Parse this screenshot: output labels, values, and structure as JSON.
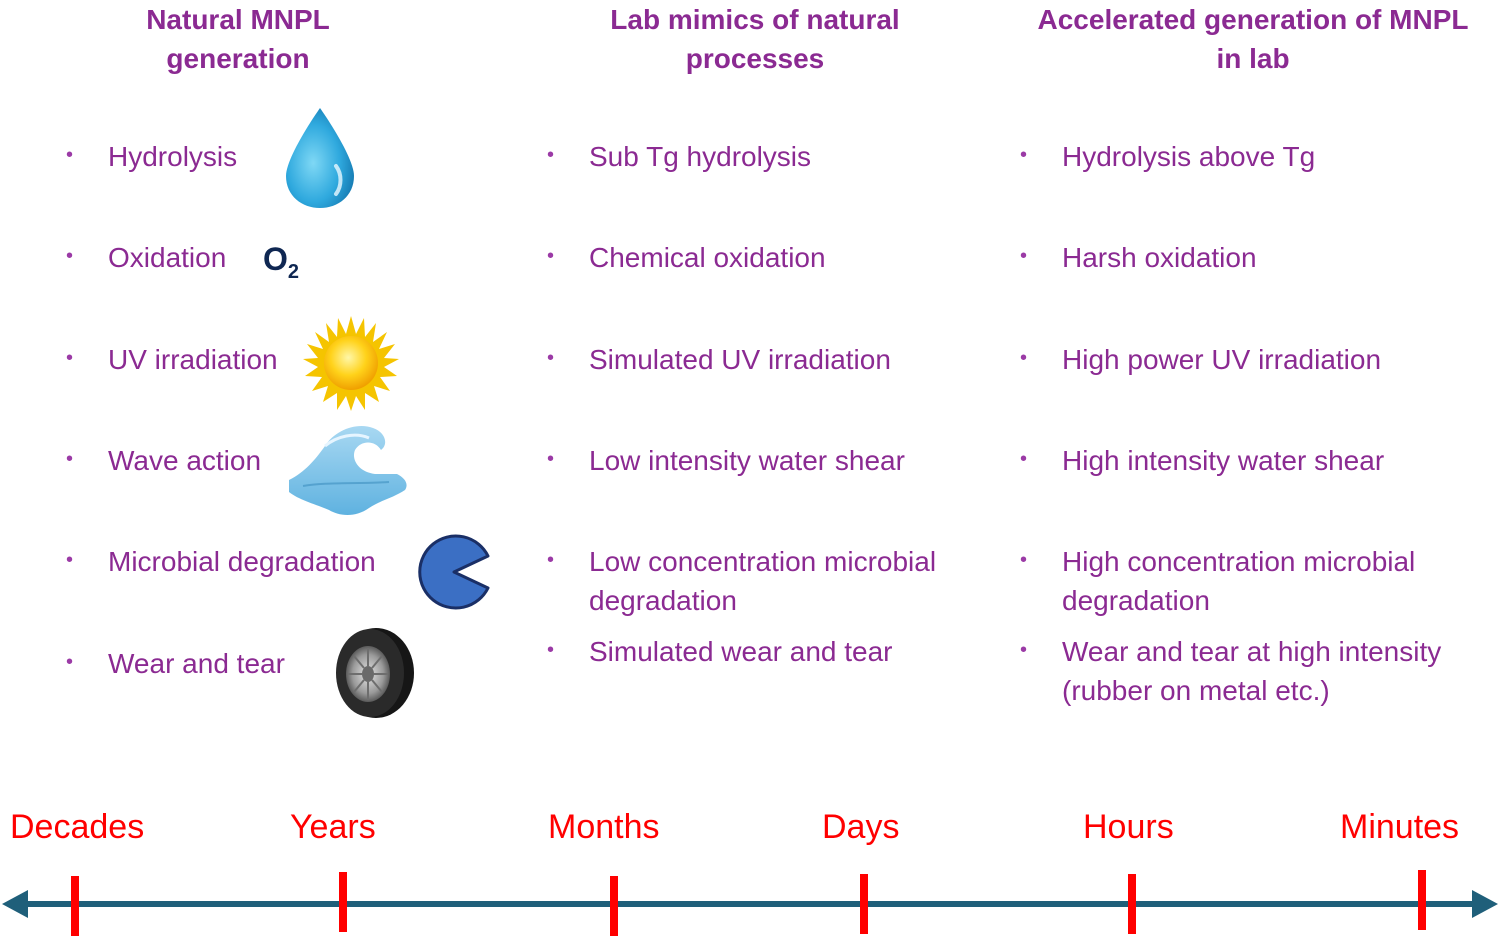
{
  "columns": [
    {
      "title_line1": "Natural MNPL",
      "title_line2": "generation",
      "items": [
        {
          "text": "Hydrolysis",
          "icon": "water-drop-icon"
        },
        {
          "text": "Oxidation",
          "icon": "o2-label"
        },
        {
          "text": "UV irradiation",
          "icon": "sun-icon"
        },
        {
          "text": "Wave action",
          "icon": "wave-icon"
        },
        {
          "text": "Microbial degradation",
          "icon": "pacman-microbe-icon"
        },
        {
          "text": "Wear and tear",
          "icon": "tire-icon"
        }
      ],
      "o2_main": "O",
      "o2_sub": "2"
    },
    {
      "title_line1": "Lab mimics of natural",
      "title_line2": "processes",
      "items": [
        {
          "line1": "Sub Tg hydrolysis"
        },
        {
          "line1": "Chemical oxidation"
        },
        {
          "line1": "Simulated UV irradiation"
        },
        {
          "line1": "Low intensity water shear"
        },
        {
          "line1": "Low concentration microbial",
          "line2": "degradation"
        },
        {
          "line1": "Simulated wear and tear"
        }
      ]
    },
    {
      "title_line1": "Accelerated generation of MNPL",
      "title_line2": "in lab",
      "items": [
        {
          "line1": "Hydrolysis above Tg"
        },
        {
          "line1": "Harsh oxidation"
        },
        {
          "line1": "High power UV irradiation"
        },
        {
          "line1": "High intensity water shear"
        },
        {
          "line1": "High concentration microbial",
          "line2": "degradation"
        },
        {
          "line1": "Wear and tear at high intensity",
          "line2": "(rubber on metal etc.)"
        }
      ]
    }
  ],
  "bullet_char": "•",
  "timeline": {
    "labels": [
      "Decades",
      "Years",
      "Months",
      "Days",
      "Hours",
      "Minutes"
    ],
    "label_color": "#ff0000",
    "axis_color": "#1f5f7a",
    "tick_color": "#ff0000"
  },
  "colors": {
    "heading": "#8b2a92",
    "text": "#8b2a92"
  }
}
